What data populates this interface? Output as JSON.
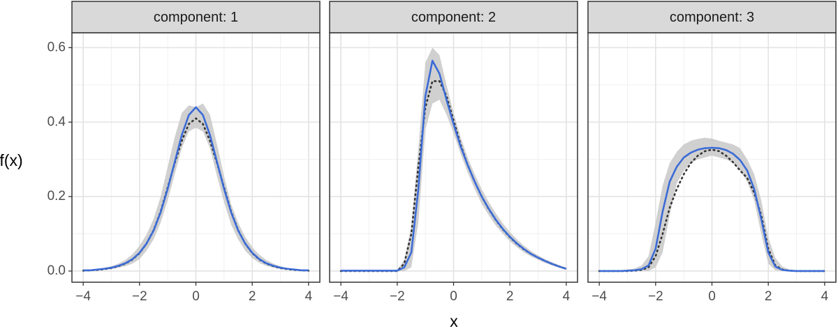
{
  "chart_data": [
    {
      "type": "line",
      "title": "component: 1",
      "xlabel": "x",
      "ylabel": "f(x)",
      "x": [
        -4,
        -3.75,
        -3.5,
        -3.25,
        -3,
        -2.75,
        -2.5,
        -2.25,
        -2,
        -1.75,
        -1.5,
        -1.25,
        -1,
        -0.75,
        -0.5,
        -0.25,
        0,
        0.25,
        0.5,
        0.75,
        1,
        1.25,
        1.5,
        1.75,
        2,
        2.25,
        2.5,
        2.75,
        3,
        3.25,
        3.5,
        3.75,
        4
      ],
      "band": {
        "color": "#c8c8c8",
        "lower": [
          0,
          0,
          0.002,
          0.003,
          0.005,
          0.009,
          0.013,
          0.02,
          0.032,
          0.055,
          0.085,
          0.13,
          0.19,
          0.26,
          0.33,
          0.375,
          0.385,
          0.375,
          0.33,
          0.255,
          0.185,
          0.125,
          0.085,
          0.055,
          0.035,
          0.022,
          0.014,
          0.009,
          0.005,
          0.003,
          0.002,
          0.001,
          0
        ],
        "upper": [
          0.003,
          0.004,
          0.006,
          0.009,
          0.013,
          0.02,
          0.03,
          0.045,
          0.068,
          0.098,
          0.14,
          0.2,
          0.28,
          0.36,
          0.425,
          0.445,
          0.44,
          0.45,
          0.42,
          0.34,
          0.255,
          0.18,
          0.13,
          0.092,
          0.064,
          0.044,
          0.03,
          0.02,
          0.013,
          0.008,
          0.006,
          0.004,
          0.003
        ]
      },
      "series": [
        {
          "color": "#333333",
          "style": "dotted",
          "values": [
            0.001,
            0.002,
            0.003,
            0.005,
            0.008,
            0.013,
            0.02,
            0.031,
            0.048,
            0.074,
            0.11,
            0.16,
            0.225,
            0.29,
            0.35,
            0.395,
            0.41,
            0.395,
            0.35,
            0.29,
            0.225,
            0.16,
            0.11,
            0.074,
            0.048,
            0.031,
            0.02,
            0.013,
            0.008,
            0.005,
            0.003,
            0.002,
            0.001
          ]
        },
        {
          "color": "#3b6bd6",
          "style": "solid",
          "values": [
            0.002,
            0.002,
            0.004,
            0.006,
            0.009,
            0.014,
            0.021,
            0.032,
            0.049,
            0.074,
            0.109,
            0.158,
            0.221,
            0.293,
            0.365,
            0.419,
            0.44,
            0.419,
            0.365,
            0.293,
            0.221,
            0.158,
            0.109,
            0.074,
            0.049,
            0.032,
            0.021,
            0.014,
            0.009,
            0.006,
            0.004,
            0.002,
            0.002
          ]
        }
      ],
      "xlim": [
        -4.4,
        4.4
      ],
      "ylim": [
        -0.03,
        0.64
      ],
      "xticks": [
        {
          "value": -4,
          "label": "−4"
        },
        {
          "value": -2,
          "label": "−2"
        },
        0,
        2,
        4
      ],
      "yticks": [
        {
          "value": 0,
          "label": "0.0"
        },
        0.2,
        0.4,
        0.6
      ],
      "xminor": [
        -3,
        -1,
        1,
        3
      ],
      "yminor": [
        0.1,
        0.3,
        0.5
      ],
      "grid": true
    },
    {
      "type": "line",
      "title": "component: 2",
      "x": [
        -4,
        -3.75,
        -3.5,
        -3.25,
        -3,
        -2.75,
        -2.5,
        -2.25,
        -2,
        -1.75,
        -1.5,
        -1.25,
        -1,
        -0.75,
        -0.5,
        -0.25,
        0,
        0.25,
        0.5,
        0.75,
        1,
        1.25,
        1.5,
        1.75,
        2,
        2.25,
        2.5,
        2.75,
        3,
        3.25,
        3.5,
        3.75,
        4
      ],
      "band": {
        "color": "#c8c8c8",
        "lower": [
          0,
          0,
          0,
          0,
          0,
          0,
          0,
          0,
          0,
          0,
          0.01,
          0.13,
          0.38,
          0.45,
          0.46,
          0.42,
          0.37,
          0.315,
          0.265,
          0.22,
          0.18,
          0.15,
          0.122,
          0.1,
          0.08,
          0.064,
          0.05,
          0.039,
          0.03,
          0.022,
          0.015,
          0.009,
          0.004
        ],
        "upper": [
          0.002,
          0.002,
          0.002,
          0.002,
          0.002,
          0.002,
          0.002,
          0.002,
          0.002,
          0.03,
          0.12,
          0.33,
          0.56,
          0.6,
          0.58,
          0.5,
          0.425,
          0.36,
          0.305,
          0.26,
          0.22,
          0.185,
          0.155,
          0.128,
          0.105,
          0.085,
          0.068,
          0.054,
          0.042,
          0.032,
          0.024,
          0.016,
          0.009
        ]
      },
      "series": [
        {
          "color": "#333333",
          "style": "dotted",
          "values": [
            0,
            0,
            0,
            0,
            0,
            0,
            0,
            0,
            0,
            0.02,
            0.1,
            0.28,
            0.44,
            0.51,
            0.51,
            0.47,
            0.405,
            0.34,
            0.285,
            0.24,
            0.2,
            0.166,
            0.137,
            0.112,
            0.091,
            0.073,
            0.058,
            0.046,
            0.036,
            0.027,
            0.019,
            0.012,
            0.006
          ]
        },
        {
          "color": "#3b6bd6",
          "style": "solid",
          "values": [
            0.001,
            0.001,
            0.001,
            0.001,
            0.001,
            0.001,
            0.001,
            0.001,
            0.001,
            0.01,
            0.05,
            0.22,
            0.47,
            0.565,
            0.53,
            0.46,
            0.395,
            0.335,
            0.285,
            0.24,
            0.2,
            0.167,
            0.138,
            0.113,
            0.092,
            0.074,
            0.059,
            0.046,
            0.036,
            0.027,
            0.019,
            0.012,
            0.006
          ]
        }
      ],
      "xlim": [
        -4.4,
        4.4
      ],
      "ylim": [
        -0.03,
        0.64
      ],
      "xticks": [
        {
          "value": -4,
          "label": "−4"
        },
        {
          "value": -2,
          "label": "−2"
        },
        0,
        2,
        4
      ],
      "ygrid": [
        0,
        0.2,
        0.4,
        0.6
      ],
      "xminor": [
        -3,
        -1,
        1,
        3
      ],
      "yminor": [
        0.1,
        0.3,
        0.5
      ],
      "grid": true
    },
    {
      "type": "line",
      "title": "component: 3",
      "x": [
        -4,
        -3.75,
        -3.5,
        -3.25,
        -3,
        -2.75,
        -2.5,
        -2.25,
        -2,
        -1.75,
        -1.5,
        -1.25,
        -1,
        -0.75,
        -0.5,
        -0.25,
        0,
        0.25,
        0.5,
        0.75,
        1,
        1.25,
        1.5,
        1.75,
        2,
        2.25,
        2.5,
        2.75,
        3,
        3.25,
        3.5,
        3.75,
        4
      ],
      "band": {
        "color": "#c8c8c8",
        "lower": [
          0,
          0,
          0,
          0,
          0,
          0,
          0,
          0,
          0.01,
          0.05,
          0.15,
          0.235,
          0.27,
          0.29,
          0.3,
          0.305,
          0.31,
          0.305,
          0.3,
          0.29,
          0.27,
          0.24,
          0.19,
          0.1,
          0.02,
          0.002,
          0,
          0,
          0,
          0,
          0,
          0,
          0
        ],
        "upper": [
          0.001,
          0.001,
          0.001,
          0.002,
          0.004,
          0.007,
          0.015,
          0.04,
          0.13,
          0.23,
          0.29,
          0.32,
          0.34,
          0.35,
          0.355,
          0.358,
          0.356,
          0.35,
          0.345,
          0.34,
          0.33,
          0.3,
          0.26,
          0.19,
          0.09,
          0.035,
          0.012,
          0.004,
          0.002,
          0.001,
          0.001,
          0.001,
          0.001
        ]
      },
      "series": [
        {
          "color": "#333333",
          "style": "dotted",
          "values": [
            0,
            0,
            0,
            0,
            0,
            0.001,
            0.003,
            0.01,
            0.04,
            0.1,
            0.17,
            0.22,
            0.26,
            0.29,
            0.31,
            0.322,
            0.326,
            0.322,
            0.31,
            0.292,
            0.27,
            0.25,
            0.21,
            0.15,
            0.06,
            0.015,
            0.004,
            0.001,
            0,
            0,
            0,
            0,
            0
          ]
        },
        {
          "color": "#3b6bd6",
          "style": "solid",
          "values": [
            0,
            0,
            0,
            0,
            0.001,
            0.002,
            0.005,
            0.015,
            0.06,
            0.16,
            0.24,
            0.28,
            0.305,
            0.318,
            0.326,
            0.33,
            0.331,
            0.33,
            0.325,
            0.315,
            0.298,
            0.27,
            0.22,
            0.14,
            0.05,
            0.012,
            0.003,
            0.001,
            0,
            0,
            0,
            0,
            0
          ]
        }
      ],
      "xlim": [
        -4.4,
        4.4
      ],
      "ylim": [
        -0.03,
        0.64
      ],
      "xticks": [
        {
          "value": -4,
          "label": "−4"
        },
        {
          "value": -2,
          "label": "−2"
        },
        0,
        2,
        4
      ],
      "ygrid": [
        0,
        0.2,
        0.4,
        0.6
      ],
      "xminor": [
        -3,
        -1,
        1,
        3
      ],
      "yminor": [
        0.1,
        0.3,
        0.5
      ],
      "grid": true
    }
  ]
}
